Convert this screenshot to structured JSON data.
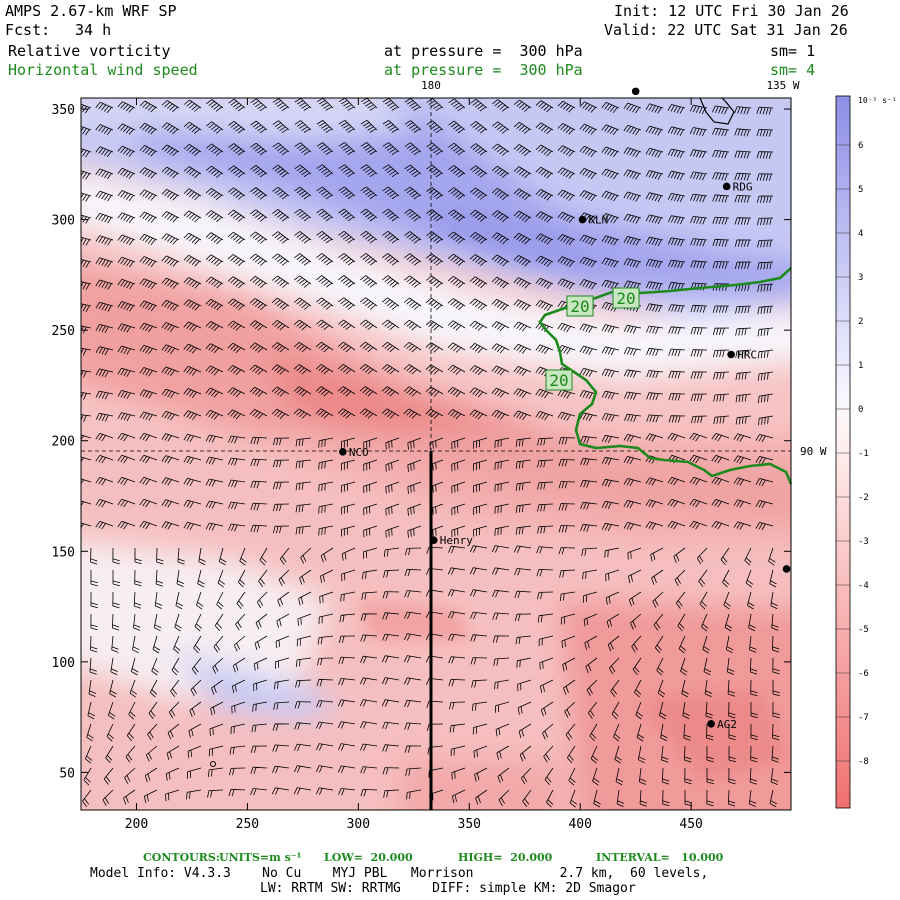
{
  "header": {
    "model": "AMPS 2.67-km WRF SP",
    "fcst_label": "Fcst:",
    "fcst_value": "34 h",
    "init": "Init: 12 UTC Fri 30 Jan 26",
    "valid": "Valid: 22 UTC Sat 31 Jan 26",
    "field1": "Relative vorticity",
    "field1_level": "at pressure =  300 hPa",
    "field1_sm": "sm= 1",
    "field2": "Horizontal wind speed",
    "field2_level": "at pressure =  300 hPa",
    "field2_sm": "sm= 4"
  },
  "map": {
    "x_axis": {
      "min": 175,
      "max": 495,
      "ticks": [
        200,
        250,
        300,
        350,
        400,
        450
      ]
    },
    "y_axis": {
      "min": 33,
      "max": 355,
      "ticks": [
        50,
        100,
        150,
        200,
        250,
        300,
        350
      ]
    },
    "meridian_labels": {
      "lon_180": "180",
      "lon_135w": "135 W",
      "lon_90w": "90 W"
    },
    "stations": [
      {
        "name": "RDG",
        "x": 466,
        "y": 315
      },
      {
        "name": "KLN",
        "x": 401,
        "y": 300
      },
      {
        "name": "HRC",
        "x": 468,
        "y": 239
      },
      {
        "name": "NCO",
        "x": 293,
        "y": 195
      },
      {
        "name": "Henry",
        "x": 334,
        "y": 155
      },
      {
        "name": "AG2",
        "x": 459,
        "y": 72
      },
      {
        "name": "",
        "x": 493,
        "y": 142
      },
      {
        "name": "",
        "x": 425,
        "y": 358
      }
    ],
    "contour_labels": [
      "20",
      "20",
      "20"
    ],
    "colors": {
      "positive": "#8c8ce6",
      "negative": "#f07070",
      "contour": "#1d8a1d"
    }
  },
  "colorbar": {
    "units": "10⁻⁵ s⁻¹",
    "labels": [
      "6",
      "5",
      "4",
      "3",
      "2",
      "1",
      "0",
      "-1",
      "-2",
      "-3",
      "-4",
      "-5",
      "-6",
      "-7",
      "-8"
    ]
  },
  "footer": {
    "contours_label": "CONTOURS:",
    "units_label": "UNITS=m s⁻¹",
    "low": "LOW=  20.000",
    "high": "HIGH=  20.000",
    "interval": "INTERVAL=   10.000",
    "model_info": "Model Info: V4.3.3    No Cu    MYJ PBL   Morrison           2.7 km,  60 levels,",
    "physics": "LW: RRTM SW: RRTMG    DIFF: simple KM: 2D Smagor"
  }
}
